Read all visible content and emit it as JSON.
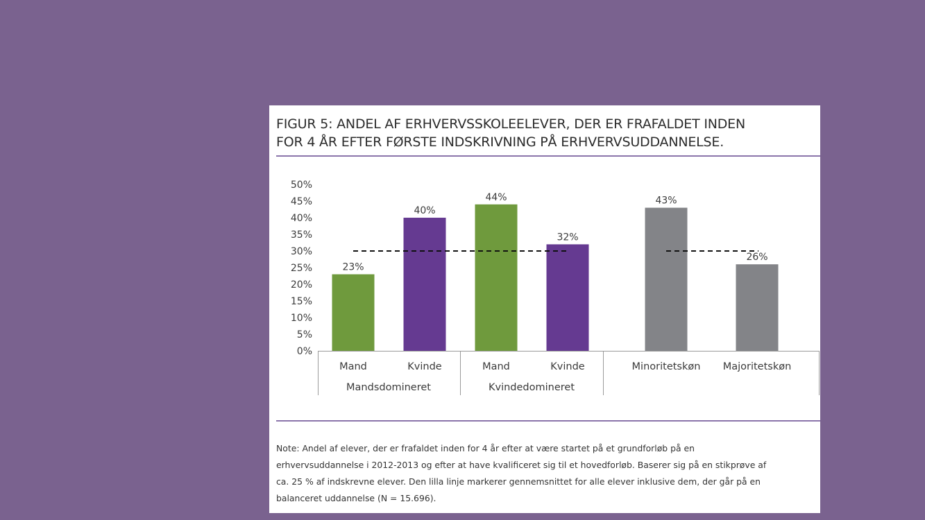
{
  "figure": {
    "title_lines": [
      "FIGUR 5: ANDEL AF ERHVERVSSKOLEELEVER, DER ER FRAFALDET INDEN",
      "FOR 4 ÅR EFTER FØRSTE INDSKRIVNING PÅ ERHVERVSUDDANNELSE."
    ],
    "note_lines": [
      "Note: Andel af elever, der er frafaldet inden for 4 år efter at være startet på et grundforløb på en",
      "erhvervsuddannelse i 2012-2013 og efter at have kvalificeret sig til et hovedforløb. Baserer sig på en stikprøve af",
      "ca. 25 % af indskrevne elever. Den lilla linje markerer gennemsnittet for alle elever inklusive dem, der går på en",
      "balanceret uddannelse (N = 15.696)."
    ]
  },
  "colors": {
    "background": "#7a628f",
    "green": "#6f9a3d",
    "purple": "#653a91",
    "gray": "#838488",
    "rule": "#8a74aa"
  },
  "chart_data": {
    "type": "bar",
    "title": "FIGUR 5: ANDEL AF ERHVERVSSKOLEELEVER, DER ER FRAFALDET INDEN FOR 4 ÅR EFTER FØRSTE INDSKRIVNING PÅ ERHVERVSUDDANNELSE.",
    "ylim": [
      0,
      50
    ],
    "yticks": [
      "0%",
      "5%",
      "10%",
      "15%",
      "20%",
      "25%",
      "30%",
      "35%",
      "40%",
      "45%",
      "50%"
    ],
    "categories": [
      "Mand",
      "Kvinde",
      "Mand",
      "Kvinde",
      "Minoritetskøn",
      "Majoritetskøn"
    ],
    "values": [
      23,
      40,
      44,
      32,
      43,
      26
    ],
    "value_labels": [
      "23%",
      "40%",
      "44%",
      "32%",
      "43%",
      "26%"
    ],
    "bar_colors": [
      "green",
      "purple",
      "green",
      "purple",
      "gray",
      "gray"
    ],
    "groups": [
      {
        "label": "Mandsdomineret",
        "members": [
          0,
          1
        ]
      },
      {
        "label": "Kvindedomineret",
        "members": [
          2,
          3
        ]
      },
      {
        "label": "",
        "members": [
          4,
          5
        ]
      }
    ],
    "reference_line": {
      "value": 30,
      "style": "dashed",
      "segments": [
        [
          0,
          3
        ],
        [
          4,
          5
        ]
      ]
    },
    "grid": false,
    "legend": "none"
  }
}
